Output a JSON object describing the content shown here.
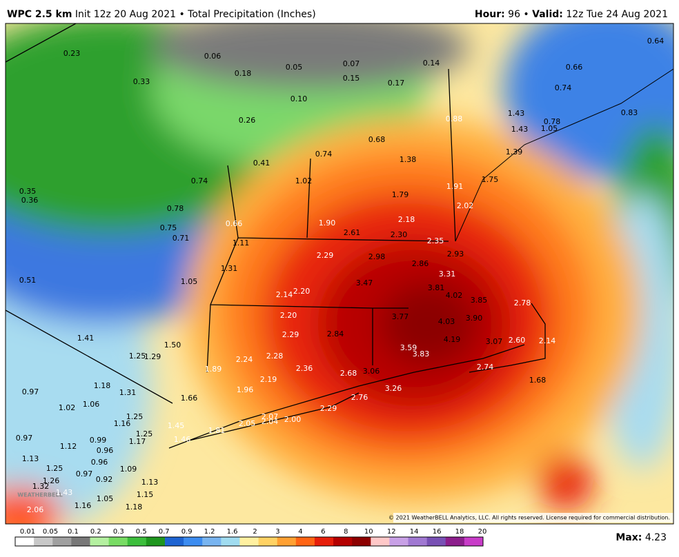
{
  "header": {
    "model": "WPC 2.5 km",
    "init": "Init 12z 20 Aug 2021 • Total Precipitation (Inches)",
    "hour_label": "Hour:",
    "hour": "96 •",
    "valid_label": "Valid:",
    "valid": "12z Tue 24 Aug 2021"
  },
  "map": {
    "labels": [
      "0.23",
      "0.06",
      "0.18",
      "0.05",
      "0.07",
      "0.14",
      "0.64",
      "0.66",
      "0.33",
      "0.15",
      "0.17",
      "0.74",
      "0.10",
      "1.43",
      "0.88",
      "1.43",
      "1.05",
      "0.26",
      "0.78",
      "0.83",
      "0.68",
      "1.38",
      "1.39",
      "0.74",
      "0.41",
      "0.74",
      "1.02",
      "1.91",
      "1.75",
      "0.35",
      "0.36",
      "1.79",
      "2.02",
      "0.78",
      "1.90",
      "2.18",
      "0.75",
      "0.66",
      "2.61",
      "2.30",
      "0.71",
      "2.35",
      "1.11",
      "2.29",
      "2.98",
      "2.93",
      "2.86",
      "1.31",
      "3.47",
      "3.31",
      "0.51",
      "1.05",
      "3.81",
      "4.02",
      "2.14",
      "2.20",
      "3.85",
      "2.78",
      "2.20",
      "3.77",
      "4.03",
      "3.90",
      "1.41",
      "2.29",
      "2.84",
      "4.19",
      "3.07",
      "2.60",
      "2.14",
      "1.50",
      "1.25",
      "1.29",
      "3.59",
      "3.83",
      "2.24",
      "2.28",
      "2.36",
      "2.74",
      "1.89",
      "2.68",
      "3.06",
      "1.18",
      "1.68",
      "2.19",
      "1.96",
      "3.26",
      "0.97",
      "1.31",
      "1.06",
      "2.76",
      "1.66",
      "1.02",
      "2.29",
      "1.25",
      "2.07",
      "1.16",
      "2.05",
      "2.04",
      "2.00",
      "1.45",
      "1.81",
      "0.97",
      "0.99",
      "1.25",
      "1.17",
      "1.46",
      "1.12",
      "0.96",
      "1.13",
      "0.96",
      "1.25",
      "1.09",
      "0.97",
      "1.26",
      "0.92",
      "1.13",
      "1.32",
      "1.43",
      "1.15",
      "1.05",
      "1.16",
      "1.18",
      "2.06"
    ],
    "watermark": "WEATHERBELL",
    "copyright": "© 2021 WeatherBELL Analytics, LLC. All rights reserved. License required for commercial distribution."
  },
  "legend": {
    "ticks": [
      "0.01",
      "0.05",
      "0.1",
      "0.2",
      "0.3",
      "0.5",
      "0.7",
      "0.9",
      "1.2",
      "1.6",
      "2",
      "3",
      "4",
      "6",
      "8",
      "10",
      "12",
      "14",
      "16",
      "18",
      "20"
    ],
    "colors": [
      "#ffffff",
      "#c8c8c8",
      "#a0a0a0",
      "#787878",
      "#b4f0a0",
      "#78dc64",
      "#3cbe3c",
      "#1e961e",
      "#1e64d2",
      "#3c8cf0",
      "#78b4f0",
      "#a0dcf0",
      "#fff0a0",
      "#ffd264",
      "#ffa032",
      "#ff6414",
      "#e61e0a",
      "#b40000",
      "#8c0000",
      "#ffc8c8",
      "#c8a0e6",
      "#a078d2",
      "#7850b4",
      "#8c1e8c",
      "#c83cc8"
    ]
  },
  "footer": {
    "max_label": "Max:",
    "max": "4.23"
  }
}
